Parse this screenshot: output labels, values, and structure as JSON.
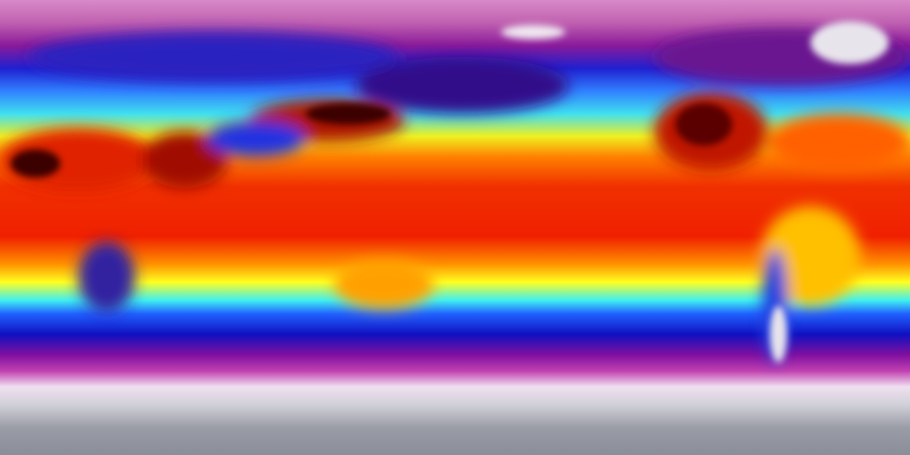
{
  "map": {
    "type": "global surface temperature map",
    "projection": "equirectangular",
    "colormap": [
      "#d88ac8",
      "#c060b0",
      "#8a1a9a",
      "#2020d0",
      "#3080ff",
      "#40e0f0",
      "#f0f020",
      "#ff8000",
      "#f03000",
      "#f02000",
      "#ff9000",
      "#ffff20",
      "#40f0f0",
      "#2060ff",
      "#1010c0",
      "#8010a0",
      "#c040b0",
      "#f0e0f0",
      "#d0d0d8",
      "#9a9ca6",
      "#8a8e98"
    ],
    "hot_color": "#3a0000",
    "ice_color": "#e8e4ec"
  }
}
